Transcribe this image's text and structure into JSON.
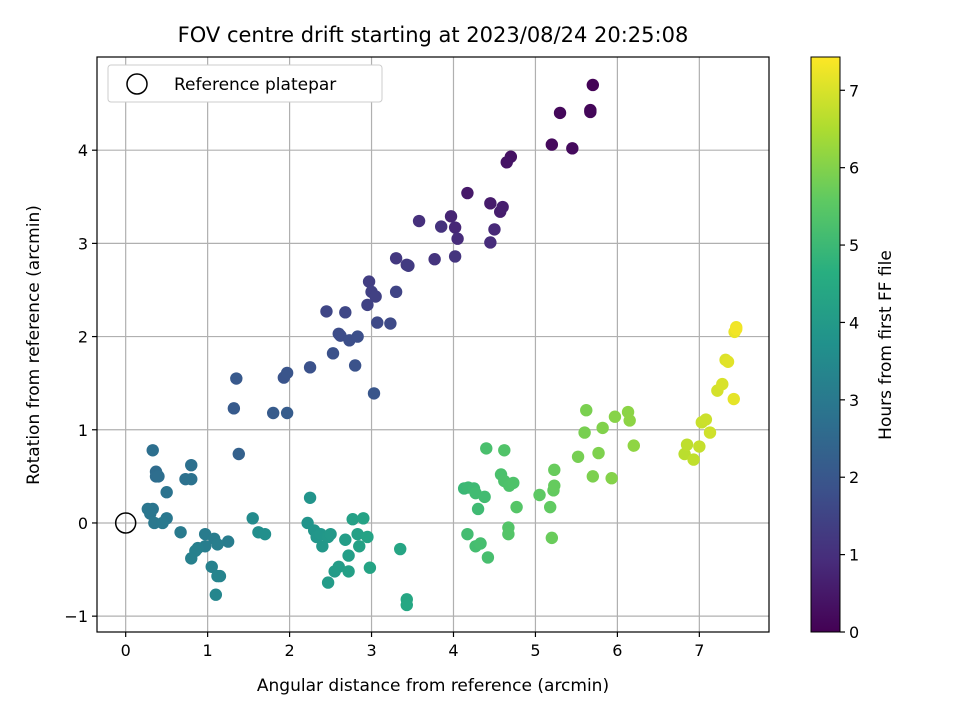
{
  "chart_data": {
    "type": "scatter",
    "title": "FOV centre drift starting at 2023/08/24 20:25:08",
    "xlabel": "Angular distance from reference (arcmin)",
    "ylabel": "Rotation from reference (arcmin)",
    "xlim": [
      -0.35,
      7.85
    ],
    "ylim": [
      -1.17,
      5.0
    ],
    "xticks": [
      0,
      1,
      2,
      3,
      4,
      5,
      6,
      7
    ],
    "yticks": [
      -1,
      0,
      1,
      2,
      3,
      4
    ],
    "grid": true,
    "legend": {
      "placement": "top-left",
      "entries": [
        "Reference platepar"
      ]
    },
    "reference_point": {
      "x": 0,
      "y": 0
    },
    "colorbar": {
      "label": "Hours from first FF file",
      "colormap": "viridis",
      "range": [
        0,
        7.43
      ],
      "ticks": [
        0,
        1,
        2,
        3,
        4,
        5,
        6,
        7
      ]
    },
    "points": [
      [
        5.7,
        4.7,
        0.05
      ],
      [
        5.67,
        4.43,
        0.1
      ],
      [
        5.67,
        4.41,
        0.12
      ],
      [
        5.3,
        4.4,
        0.15
      ],
      [
        5.2,
        4.06,
        0.2
      ],
      [
        5.45,
        4.02,
        0.22
      ],
      [
        4.7,
        3.93,
        0.35
      ],
      [
        4.65,
        3.87,
        0.4
      ],
      [
        4.17,
        3.54,
        0.5
      ],
      [
        4.45,
        3.43,
        0.55
      ],
      [
        4.57,
        3.34,
        0.6
      ],
      [
        4.6,
        3.39,
        0.62
      ],
      [
        3.97,
        3.29,
        0.75
      ],
      [
        4.02,
        3.17,
        0.8
      ],
      [
        4.5,
        3.15,
        0.85
      ],
      [
        4.05,
        3.05,
        0.9
      ],
      [
        4.45,
        3.01,
        0.92
      ],
      [
        3.58,
        3.24,
        1.0
      ],
      [
        3.85,
        3.18,
        1.05
      ],
      [
        3.77,
        2.83,
        1.1
      ],
      [
        4.02,
        2.86,
        1.12
      ],
      [
        3.3,
        2.84,
        1.2
      ],
      [
        3.43,
        2.77,
        1.25
      ],
      [
        3.45,
        2.76,
        1.28
      ],
      [
        2.97,
        2.59,
        1.35
      ],
      [
        3.0,
        2.48,
        1.4
      ],
      [
        3.05,
        2.43,
        1.42
      ],
      [
        2.95,
        2.34,
        1.45
      ],
      [
        3.3,
        2.48,
        1.5
      ],
      [
        2.45,
        2.27,
        1.55
      ],
      [
        2.68,
        2.26,
        1.58
      ],
      [
        3.07,
        2.15,
        1.62
      ],
      [
        3.23,
        2.14,
        1.65
      ],
      [
        2.6,
        2.03,
        1.7
      ],
      [
        2.62,
        2.01,
        1.72
      ],
      [
        2.73,
        1.96,
        1.75
      ],
      [
        2.83,
        2.0,
        1.78
      ],
      [
        2.53,
        1.82,
        1.82
      ],
      [
        2.25,
        1.67,
        1.85
      ],
      [
        2.8,
        1.69,
        1.88
      ],
      [
        1.93,
        1.56,
        1.92
      ],
      [
        1.97,
        1.61,
        1.95
      ],
      [
        3.03,
        1.39,
        1.98
      ],
      [
        1.35,
        1.55,
        2.05
      ],
      [
        1.32,
        1.23,
        2.1
      ],
      [
        1.8,
        1.18,
        2.12
      ],
      [
        1.97,
        1.18,
        2.15
      ],
      [
        1.38,
        0.74,
        2.3
      ],
      [
        0.37,
        0.55,
        2.6
      ],
      [
        0.37,
        0.5,
        2.65
      ],
      [
        0.4,
        0.5,
        2.68
      ],
      [
        0.33,
        0.78,
        2.7
      ],
      [
        0.8,
        0.62,
        2.72
      ],
      [
        0.73,
        0.47,
        2.75
      ],
      [
        0.8,
        0.47,
        2.78
      ],
      [
        0.5,
        0.33,
        2.82
      ],
      [
        0.33,
        0.15,
        2.88
      ],
      [
        0.27,
        0.15,
        2.9
      ],
      [
        0.3,
        0.1,
        2.92
      ],
      [
        0.5,
        0.05,
        2.95
      ],
      [
        0.35,
        0.0,
        2.98
      ],
      [
        0.45,
        0.0,
        3.0
      ],
      [
        0.67,
        -0.1,
        3.02
      ],
      [
        0.97,
        -0.12,
        3.05
      ],
      [
        1.08,
        -0.17,
        3.08
      ],
      [
        1.25,
        -0.2,
        3.1
      ],
      [
        0.97,
        -0.25,
        3.12
      ],
      [
        1.12,
        -0.23,
        3.15
      ],
      [
        0.88,
        -0.27,
        3.18
      ],
      [
        0.85,
        -0.3,
        3.2
      ],
      [
        0.8,
        -0.38,
        3.22
      ],
      [
        1.05,
        -0.47,
        3.25
      ],
      [
        1.15,
        -0.57,
        3.3
      ],
      [
        1.12,
        -0.57,
        3.32
      ],
      [
        1.1,
        -0.77,
        3.38
      ],
      [
        1.55,
        0.05,
        3.55
      ],
      [
        1.62,
        -0.1,
        3.62
      ],
      [
        1.7,
        -0.12,
        3.65
      ],
      [
        2.22,
        0.0,
        3.8
      ],
      [
        2.25,
        0.27,
        3.82
      ],
      [
        2.3,
        -0.08,
        3.85
      ],
      [
        2.33,
        -0.15,
        3.88
      ],
      [
        2.38,
        -0.12,
        3.9
      ],
      [
        2.4,
        -0.25,
        3.92
      ],
      [
        2.47,
        -0.15,
        3.95
      ],
      [
        2.5,
        -0.12,
        3.98
      ],
      [
        2.47,
        -0.64,
        4.02
      ],
      [
        2.55,
        -0.52,
        4.05
      ],
      [
        2.6,
        -0.47,
        4.08
      ],
      [
        2.68,
        -0.18,
        4.1
      ],
      [
        2.72,
        -0.35,
        4.12
      ],
      [
        2.72,
        -0.52,
        4.15
      ],
      [
        2.77,
        0.04,
        4.18
      ],
      [
        2.83,
        -0.12,
        4.2
      ],
      [
        2.85,
        -0.25,
        4.22
      ],
      [
        2.9,
        0.05,
        4.25
      ],
      [
        2.95,
        -0.15,
        4.28
      ],
      [
        2.98,
        -0.48,
        4.3
      ],
      [
        3.35,
        -0.28,
        4.35
      ],
      [
        3.43,
        -0.82,
        4.4
      ],
      [
        3.43,
        -0.88,
        4.42
      ],
      [
        4.13,
        0.37,
        4.95
      ],
      [
        4.18,
        0.38,
        5.0
      ],
      [
        4.25,
        0.37,
        5.02
      ],
      [
        4.3,
        0.15,
        5.05
      ],
      [
        4.27,
        0.32,
        5.08
      ],
      [
        4.38,
        0.28,
        5.1
      ],
      [
        4.17,
        -0.12,
        5.12
      ],
      [
        4.27,
        -0.25,
        5.15
      ],
      [
        4.33,
        -0.22,
        5.18
      ],
      [
        4.42,
        -0.37,
        5.2
      ],
      [
        4.4,
        0.8,
        5.22
      ],
      [
        4.58,
        0.52,
        5.25
      ],
      [
        4.62,
        0.45,
        5.28
      ],
      [
        4.68,
        0.4,
        5.3
      ],
      [
        4.73,
        0.43,
        5.32
      ],
      [
        4.62,
        0.78,
        5.35
      ],
      [
        4.67,
        -0.05,
        5.38
      ],
      [
        4.67,
        -0.12,
        5.4
      ],
      [
        4.77,
        0.17,
        5.42
      ],
      [
        5.05,
        0.3,
        5.55
      ],
      [
        5.18,
        0.17,
        5.6
      ],
      [
        5.22,
        0.35,
        5.62
      ],
      [
        5.23,
        0.4,
        5.65
      ],
      [
        5.23,
        0.57,
        5.68
      ],
      [
        5.2,
        -0.16,
        5.7
      ],
      [
        5.52,
        0.71,
        5.85
      ],
      [
        5.6,
        0.97,
        5.88
      ],
      [
        5.62,
        1.21,
        5.9
      ],
      [
        5.7,
        0.5,
        5.92
      ],
      [
        5.77,
        0.75,
        5.95
      ],
      [
        5.82,
        1.02,
        5.98
      ],
      [
        5.93,
        0.48,
        6.02
      ],
      [
        5.97,
        1.14,
        6.05
      ],
      [
        6.13,
        1.19,
        6.1
      ],
      [
        6.15,
        1.1,
        6.12
      ],
      [
        6.2,
        0.83,
        6.15
      ],
      [
        6.82,
        0.74,
        6.65
      ],
      [
        6.85,
        0.84,
        6.7
      ],
      [
        6.93,
        0.68,
        6.72
      ],
      [
        7.0,
        0.82,
        6.78
      ],
      [
        7.03,
        1.08,
        6.82
      ],
      [
        7.08,
        1.11,
        6.85
      ],
      [
        7.13,
        0.97,
        6.9
      ],
      [
        7.22,
        1.42,
        6.95
      ],
      [
        7.28,
        1.49,
        7.0
      ],
      [
        7.32,
        1.75,
        7.05
      ],
      [
        7.35,
        1.73,
        7.1
      ],
      [
        7.42,
        1.33,
        7.15
      ],
      [
        7.43,
        2.05,
        7.2
      ],
      [
        7.45,
        2.1,
        7.25
      ],
      [
        7.45,
        2.08,
        7.3
      ]
    ]
  }
}
